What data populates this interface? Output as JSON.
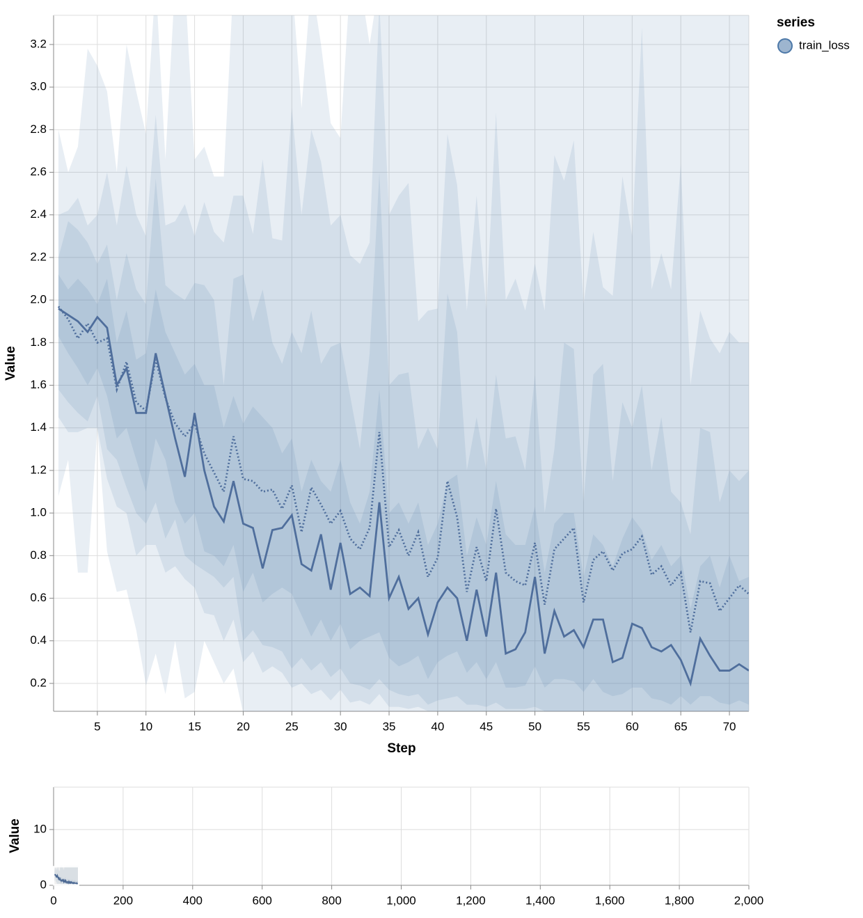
{
  "chart_data": {
    "type": "line",
    "x_label": "Step",
    "y_label": "Value",
    "legend_title": "series",
    "grid": true,
    "x": [
      1,
      2,
      3,
      4,
      5,
      6,
      7,
      8,
      9,
      10,
      11,
      12,
      13,
      14,
      15,
      16,
      17,
      18,
      19,
      20,
      21,
      22,
      23,
      24,
      25,
      26,
      27,
      28,
      29,
      30,
      31,
      32,
      33,
      34,
      35,
      36,
      37,
      38,
      39,
      40,
      41,
      42,
      43,
      44,
      45,
      46,
      47,
      48,
      49,
      50,
      51,
      52,
      53,
      54,
      55,
      56,
      57,
      58,
      59,
      60,
      61,
      62,
      63,
      64,
      65,
      66,
      67,
      68,
      69,
      70,
      71,
      72
    ],
    "xlim": [
      0.5,
      72
    ],
    "xticks": [
      5,
      10,
      15,
      20,
      25,
      30,
      35,
      40,
      45,
      50,
      55,
      60,
      65,
      70
    ],
    "ylim": [
      0.069,
      3.337
    ],
    "yticks": [
      0.2,
      0.4,
      0.6,
      0.8,
      {
        "value": 1,
        "label": "1.0"
      },
      1.2,
      1.4,
      1.6,
      1.8,
      {
        "value": 2,
        "label": "2.0"
      },
      2.2,
      2.4,
      2.6,
      2.8,
      {
        "value": 3,
        "label": "3.0"
      },
      3.2
    ],
    "series": [
      {
        "name": "train_loss",
        "color": "#4c78a8",
        "values": [
          1.96,
          1.93,
          1.9,
          1.85,
          1.92,
          1.87,
          1.6,
          1.68,
          1.47,
          1.47,
          1.75,
          1.55,
          1.35,
          1.17,
          1.47,
          1.2,
          1.03,
          0.96,
          1.15,
          0.95,
          0.93,
          0.74,
          0.92,
          0.93,
          0.99,
          0.76,
          0.73,
          0.9,
          0.64,
          0.86,
          0.62,
          0.65,
          0.61,
          1.05,
          0.6,
          0.7,
          0.55,
          0.6,
          0.43,
          0.58,
          0.65,
          0.6,
          0.4,
          0.64,
          0.42,
          0.72,
          0.34,
          0.36,
          0.44,
          0.7,
          0.34,
          0.54,
          0.42,
          0.45,
          0.37,
          0.5,
          0.5,
          0.3,
          0.32,
          0.48,
          0.46,
          0.37,
          0.35,
          0.38,
          0.31,
          0.2,
          0.41,
          0.33,
          0.26,
          0.26,
          0.29,
          0.26
        ],
        "mean": [
          1.97,
          1.91,
          1.82,
          1.89,
          1.8,
          1.82,
          1.58,
          1.71,
          1.52,
          1.48,
          1.72,
          1.54,
          1.42,
          1.36,
          1.42,
          1.28,
          1.19,
          1.1,
          1.36,
          1.16,
          1.15,
          1.1,
          1.11,
          1.02,
          1.13,
          0.91,
          1.12,
          1.04,
          0.95,
          1.01,
          0.88,
          0.83,
          0.93,
          1.38,
          0.84,
          0.92,
          0.8,
          0.91,
          0.7,
          0.79,
          1.15,
          0.98,
          0.63,
          0.84,
          0.68,
          1.02,
          0.72,
          0.68,
          0.66,
          0.86,
          0.57,
          0.83,
          0.88,
          0.93,
          0.58,
          0.78,
          0.82,
          0.73,
          0.81,
          0.83,
          0.89,
          0.71,
          0.75,
          0.66,
          0.72,
          0.44,
          0.68,
          0.67,
          0.54,
          0.6,
          0.66,
          0.62
        ],
        "bands": [
          {
            "upper": [
              2.8,
              2.6,
              2.72,
              3.18,
              3.1,
              2.98,
              2.6,
              3.2,
              2.98,
              2.78,
              3.5,
              2.66,
              3.5,
              3.5,
              2.66,
              2.72,
              2.58,
              2.58,
              3.5,
              3.5,
              3.5,
              3.5,
              3.5,
              3.5,
              3.5,
              2.9,
              3.5,
              3.2,
              2.83,
              2.76,
              3.5,
              3.5,
              3.2,
              3.5,
              3.5,
              3.5,
              3.5,
              3.5,
              3.5,
              3.5,
              3.5,
              3.5,
              3.5,
              3.5,
              3.5,
              3.5,
              3.5,
              3.5,
              3.5,
              3.5,
              3.5,
              3.5,
              3.5,
              3.5,
              3.5,
              3.5,
              3.5,
              3.5,
              3.5,
              3.5,
              3.5,
              3.5,
              3.5,
              3.5,
              3.5,
              3.5,
              3.5,
              3.5,
              3.5,
              3.5,
              3.5,
              3.5
            ],
            "lower": [
              1.08,
              1.25,
              0.72,
              0.72,
              1.4,
              0.82,
              0.63,
              0.64,
              0.45,
              0.19,
              0.34,
              0.15,
              0.4,
              0.13,
              0.16,
              0.4,
              0.3,
              0.2,
              0.27,
              0.06,
              0.05,
              0.05,
              0.05,
              0.05,
              0.05,
              0.05,
              0.05,
              0.05,
              0.05,
              0.05,
              0.05,
              0.05,
              0.05,
              0.05,
              0.05,
              0.05,
              0.05,
              0.05,
              0.05,
              0.05,
              0.05,
              0.05,
              0.05,
              0.05,
              0.05,
              0.05,
              0.05,
              0.05,
              0.05,
              0.05,
              0.05,
              0.05,
              0.05,
              0.05,
              0.05,
              0.05,
              0.05,
              0.05,
              0.05,
              0.05,
              0.05,
              0.05,
              0.05,
              0.05,
              0.05,
              0.05,
              0.05,
              0.05,
              0.05,
              0.05,
              0.05,
              0.05
            ]
          },
          {
            "upper": [
              2.4,
              2.42,
              2.48,
              2.35,
              2.4,
              2.6,
              2.35,
              2.63,
              2.4,
              2.3,
              2.87,
              2.35,
              2.37,
              2.45,
              2.3,
              2.46,
              2.32,
              2.27,
              2.49,
              2.49,
              2.31,
              2.66,
              2.29,
              2.28,
              2.9,
              2.4,
              2.8,
              2.65,
              2.35,
              2.4,
              2.21,
              2.17,
              2.27,
              3.4,
              2.4,
              2.49,
              2.55,
              1.9,
              1.95,
              1.96,
              2.78,
              2.54,
              1.95,
              2.49,
              1.95,
              2.88,
              2.0,
              2.1,
              1.95,
              2.17,
              1.95,
              2.68,
              2.56,
              2.75,
              1.98,
              2.32,
              2.06,
              2.02,
              2.58,
              2.3,
              3.28,
              2.05,
              2.22,
              2.05,
              2.64,
              1.6,
              1.95,
              1.82,
              1.75,
              1.85,
              1.8,
              1.8
            ],
            "lower": [
              1.45,
              1.38,
              1.38,
              1.4,
              1.4,
              1.16,
              1.03,
              1.0,
              0.8,
              0.85,
              0.85,
              0.72,
              0.75,
              0.69,
              0.65,
              0.53,
              0.52,
              0.4,
              0.5,
              0.3,
              0.35,
              0.25,
              0.28,
              0.25,
              0.18,
              0.2,
              0.15,
              0.17,
              0.12,
              0.17,
              0.11,
              0.12,
              0.1,
              0.15,
              0.09,
              0.09,
              0.08,
              0.09,
              0.07,
              0.07,
              0.05,
              0.05,
              0.05,
              0.05,
              0.05,
              0.05,
              0.05,
              0.05,
              0.05,
              0.05,
              0.05,
              0.05,
              0.05,
              0.05,
              0.05,
              0.05,
              0.05,
              0.05,
              0.05,
              0.05,
              0.05,
              0.05,
              0.05,
              0.05,
              0.05,
              0.05,
              0.05,
              0.05,
              0.05,
              0.05,
              0.05,
              0.05
            ]
          },
          {
            "upper": [
              2.2,
              2.37,
              2.33,
              2.27,
              2.17,
              2.26,
              2.0,
              2.22,
              2.05,
              1.98,
              2.57,
              2.07,
              2.03,
              2.0,
              2.08,
              2.07,
              2.0,
              1.6,
              2.1,
              2.12,
              1.9,
              2.05,
              1.8,
              1.7,
              1.85,
              1.75,
              1.95,
              1.7,
              1.78,
              1.8,
              1.55,
              1.3,
              1.75,
              2.6,
              1.6,
              1.65,
              1.66,
              1.3,
              1.4,
              1.3,
              2.03,
              1.85,
              1.2,
              1.45,
              1.2,
              1.65,
              1.35,
              1.36,
              1.2,
              1.65,
              1.0,
              1.3,
              1.8,
              1.77,
              1.05,
              1.65,
              1.7,
              1.15,
              1.52,
              1.4,
              1.6,
              1.2,
              1.45,
              1.1,
              1.05,
              0.9,
              1.4,
              1.38,
              1.05,
              1.2,
              1.15,
              1.2
            ],
            "lower": [
              1.58,
              1.52,
              1.47,
              1.43,
              1.55,
              1.3,
              1.25,
              1.12,
              1.0,
              0.95,
              1.05,
              0.88,
              0.97,
              0.8,
              0.76,
              0.73,
              0.7,
              0.65,
              0.7,
              0.4,
              0.45,
              0.38,
              0.37,
              0.35,
              0.27,
              0.32,
              0.26,
              0.3,
              0.23,
              0.27,
              0.2,
              0.19,
              0.17,
              0.22,
              0.17,
              0.15,
              0.14,
              0.15,
              0.1,
              0.12,
              0.13,
              0.14,
              0.1,
              0.1,
              0.09,
              0.11,
              0.08,
              0.08,
              0.08,
              0.09,
              0.07,
              0.07,
              0.07,
              0.07,
              0.07,
              0.07,
              0.07,
              0.07,
              0.07,
              0.07,
              0.07,
              0.07,
              0.07,
              0.07,
              0.07,
              0.07,
              0.07,
              0.07,
              0.07,
              0.07,
              0.07,
              0.07
            ]
          },
          {
            "upper": [
              2.12,
              2.05,
              2.1,
              2.05,
              1.98,
              2.1,
              1.8,
              1.95,
              1.72,
              1.75,
              2.05,
              1.85,
              1.75,
              1.65,
              1.7,
              1.6,
              1.6,
              1.4,
              1.55,
              1.42,
              1.5,
              1.45,
              1.4,
              1.28,
              1.35,
              1.1,
              1.25,
              1.15,
              1.1,
              1.25,
              1.05,
              0.95,
              1.1,
              1.58,
              1.0,
              1.05,
              0.95,
              1.05,
              0.85,
              0.95,
              1.15,
              1.18,
              0.8,
              0.98,
              0.85,
              1.15,
              0.9,
              0.85,
              0.85,
              1.03,
              0.72,
              0.95,
              1.0,
              1.0,
              0.7,
              0.9,
              0.85,
              0.75,
              0.88,
              0.98,
              0.92,
              0.78,
              0.85,
              0.75,
              0.8,
              0.55,
              0.75,
              0.8,
              0.65,
              0.8,
              0.68,
              0.7
            ],
            "lower": [
              1.83,
              1.75,
              1.68,
              1.6,
              1.68,
              1.55,
              1.35,
              1.4,
              1.25,
              1.1,
              1.35,
              1.25,
              1.05,
              0.95,
              1.0,
              0.82,
              0.8,
              0.75,
              0.85,
              0.63,
              0.72,
              0.58,
              0.62,
              0.65,
              0.62,
              0.52,
              0.42,
              0.5,
              0.4,
              0.48,
              0.36,
              0.4,
              0.42,
              0.44,
              0.32,
              0.28,
              0.3,
              0.33,
              0.22,
              0.3,
              0.33,
              0.35,
              0.25,
              0.3,
              0.22,
              0.3,
              0.18,
              0.18,
              0.19,
              0.28,
              0.18,
              0.22,
              0.22,
              0.21,
              0.16,
              0.22,
              0.16,
              0.14,
              0.15,
              0.18,
              0.18,
              0.13,
              0.12,
              0.1,
              0.14,
              0.1,
              0.14,
              0.14,
              0.11,
              0.1,
              0.12,
              0.1
            ]
          }
        ]
      }
    ],
    "overview": {
      "y_label": "Value",
      "xlim": [
        0,
        2000
      ],
      "ylim": [
        0,
        17.6
      ],
      "yticks": [
        0,
        10
      ],
      "xticks": [
        0,
        200,
        400,
        600,
        800,
        {
          "value": 1000,
          "label": "1,000"
        },
        {
          "value": 1200,
          "label": "1,200"
        },
        {
          "value": 1400,
          "label": "1,400"
        },
        {
          "value": 1600,
          "label": "1,600"
        },
        {
          "value": 1800,
          "label": "1,800"
        },
        {
          "value": 2000,
          "label": "2,000"
        }
      ]
    }
  }
}
